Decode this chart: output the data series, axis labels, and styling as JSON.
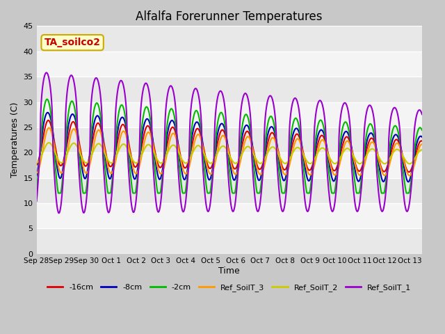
{
  "title": "Alfalfa Forerunner Temperatures",
  "ylabel": "Temperatures (C)",
  "xlabel": "Time",
  "annotation_text": "TA_soilco2",
  "annotation_bg": "#ffffcc",
  "annotation_border": "#ccaa00",
  "annotation_color": "#cc0000",
  "ylim": [
    0,
    45
  ],
  "yticks": [
    0,
    5,
    10,
    15,
    20,
    25,
    30,
    35,
    40,
    45
  ],
  "xlim": [
    0,
    15.5
  ],
  "colors": {
    "-16cm": "#dd0000",
    "-8cm": "#0000bb",
    "-2cm": "#00bb00",
    "Ref_SoilT_3": "#ff9900",
    "Ref_SoilT_2": "#cccc00",
    "Ref_SoilT_1": "#9900cc"
  },
  "legend_labels": [
    "-16cm",
    "-8cm",
    "-2cm",
    "Ref_SoilT_3",
    "Ref_SoilT_2",
    "Ref_SoilT_1"
  ],
  "tick_labels": [
    "Sep 28",
    "Sep 29",
    "Sep 30",
    "Oct 1",
    "Oct 2",
    "Oct 3",
    "Oct 4",
    "Oct 5",
    "Oct 6",
    "Oct 7",
    "Oct 8",
    "Oct 9",
    "Oct 10",
    "Oct 11",
    "Oct 12",
    "Oct 13"
  ],
  "band_colors": [
    "#e8e8e8",
    "#f4f4f4"
  ],
  "fig_facecolor": "#c8c8c8",
  "linewidth": 1.5
}
